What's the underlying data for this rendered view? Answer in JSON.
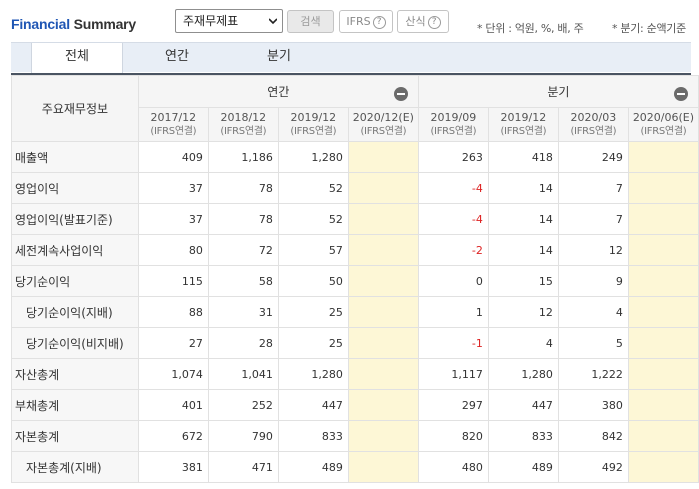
{
  "header": {
    "title_part1": "Financial",
    "title_part2": "Summary",
    "select_value": "주재무제표",
    "search_label": "검색",
    "ifrs_label": "IFRS",
    "formula_label": "산식",
    "question_mark": "?",
    "unit_note": "* 단위 : 억원, %, 배, 주",
    "period_note": "* 분기: 순액기준"
  },
  "tabs": [
    "전체",
    "연간",
    "분기"
  ],
  "table": {
    "row_header_title": "주요재무정보",
    "annual_group": "연간",
    "quarter_group": "분기",
    "columns": [
      {
        "period": "2017/12",
        "basis": "(IFRS연결)"
      },
      {
        "period": "2018/12",
        "basis": "(IFRS연결)"
      },
      {
        "period": "2019/12",
        "basis": "(IFRS연결)"
      },
      {
        "period": "2020/12(E)",
        "basis": "(IFRS연결)"
      },
      {
        "period": "2019/09",
        "basis": "(IFRS연결)"
      },
      {
        "period": "2019/12",
        "basis": "(IFRS연결)"
      },
      {
        "period": "2020/03",
        "basis": "(IFRS연결)"
      },
      {
        "period": "2020/06(E)",
        "basis": "(IFRS연결)"
      }
    ],
    "rows": [
      {
        "label": "매출액",
        "values": [
          "409",
          "1,186",
          "1,280",
          "",
          "263",
          "418",
          "249",
          ""
        ]
      },
      {
        "label": "영업이익",
        "values": [
          "37",
          "78",
          "52",
          "",
          "-4",
          "14",
          "7",
          ""
        ]
      },
      {
        "label": "영업이익(발표기준)",
        "values": [
          "37",
          "78",
          "52",
          "",
          "-4",
          "14",
          "7",
          ""
        ]
      },
      {
        "label": "세전계속사업이익",
        "values": [
          "80",
          "72",
          "57",
          "",
          "-2",
          "14",
          "12",
          ""
        ]
      },
      {
        "label": "당기순이익",
        "values": [
          "115",
          "58",
          "50",
          "",
          "0",
          "15",
          "9",
          ""
        ]
      },
      {
        "label": "당기순이익(지배)",
        "values": [
          "88",
          "31",
          "25",
          "",
          "1",
          "12",
          "4",
          ""
        ]
      },
      {
        "label": "당기순이익(비지배)",
        "values": [
          "27",
          "28",
          "25",
          "",
          "-1",
          "4",
          "5",
          ""
        ]
      },
      {
        "label": "자산총계",
        "values": [
          "1,074",
          "1,041",
          "1,280",
          "",
          "1,117",
          "1,280",
          "1,222",
          ""
        ]
      },
      {
        "label": "부채총계",
        "values": [
          "401",
          "252",
          "447",
          "",
          "297",
          "447",
          "380",
          ""
        ]
      },
      {
        "label": "자본총계",
        "values": [
          "672",
          "790",
          "833",
          "",
          "820",
          "833",
          "842",
          ""
        ]
      },
      {
        "label": "자본총계(지배)",
        "values": [
          "381",
          "471",
          "489",
          "",
          "480",
          "489",
          "492",
          ""
        ]
      }
    ]
  },
  "colors": {
    "title_blue": "#1f56b4",
    "negative_red": "#dd2222",
    "estimate_bg": "#fdf7d6",
    "tab_bg": "#e8eef6"
  }
}
